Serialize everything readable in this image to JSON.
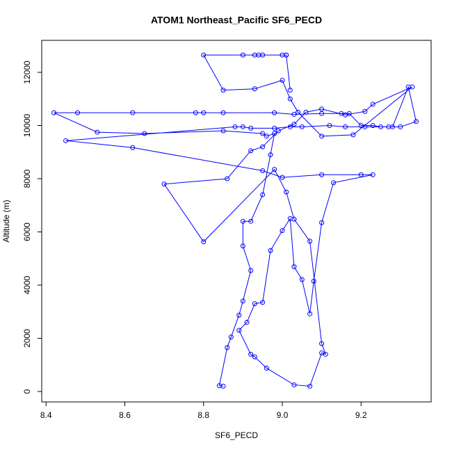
{
  "chart_data": {
    "type": "line",
    "title": "ATOM1 Northeast_Pacific SF6_PECD",
    "x_label": "SF6_PECD",
    "y_label": "Altitude (m)",
    "markers": true,
    "color": "#0000ff",
    "x": [
      8.85,
      8.84,
      8.86,
      8.87,
      8.89,
      8.9,
      8.92,
      8.9,
      8.9,
      8.92,
      8.95,
      8.97,
      8.98,
      8.96,
      8.95,
      8.85,
      8.65,
      8.53,
      8.42,
      8.48,
      8.62,
      8.78,
      8.8,
      8.85,
      8.98,
      9.03,
      9.1,
      9.15,
      9.17,
      9.2,
      9.23,
      9.25,
      9.27,
      9.3,
      9.34,
      9.32,
      9.28,
      9.21,
      9.16,
      9.12,
      9.05,
      9.02,
      8.98,
      8.92,
      8.9,
      8.88,
      8.45,
      8.62,
      8.95,
      9.0,
      9.1,
      9.2,
      9.23,
      9.13,
      9.1,
      9.08,
      9.07,
      9.05,
      9.03,
      9.02,
      9.0,
      8.97,
      8.95,
      8.93,
      8.91,
      8.89,
      8.92,
      8.93,
      8.96,
      9.03,
      9.07,
      9.1,
      9.11,
      9.1,
      9.07,
      9.03,
      9.01,
      8.98,
      8.8,
      8.7,
      8.86,
      8.92,
      8.95,
      8.99,
      9.03,
      9.06,
      9.1,
      9.16,
      9.21,
      9.23,
      9.33,
      9.18,
      9.1,
      9.04,
      9.02,
      9.0,
      8.93,
      8.85,
      8.8,
      8.9,
      8.93,
      8.94,
      8.95,
      9.0,
      9.01,
      9.01,
      9.02
    ],
    "values": [
      200,
      220,
      1650,
      2050,
      2870,
      3400,
      4550,
      5470,
      6400,
      6400,
      7400,
      8900,
      9700,
      9600,
      9700,
      9800,
      9700,
      9750,
      10480,
      10480,
      10480,
      10480,
      10480,
      10480,
      10480,
      10420,
      10450,
      10450,
      10450,
      10000,
      10000,
      9950,
      9950,
      9950,
      10150,
      11450,
      9950,
      9950,
      9950,
      10000,
      9950,
      9950,
      9900,
      9900,
      9950,
      9950,
      9430,
      9170,
      8300,
      8050,
      8150,
      8150,
      8150,
      7850,
      6350,
      4150,
      2920,
      4210,
      4690,
      6500,
      6050,
      5300,
      3350,
      3300,
      2600,
      2300,
      1400,
      1300,
      880,
      250,
      200,
      1450,
      1400,
      1800,
      5650,
      6480,
      7500,
      8350,
      5630,
      7800,
      8000,
      9050,
      9200,
      9800,
      10050,
      10500,
      10620,
      10400,
      10530,
      10800,
      11450,
      9650,
      9600,
      10500,
      11000,
      11700,
      11380,
      11330,
      12650,
      12650,
      12650,
      12650,
      12650,
      12650,
      12650,
      12650,
      11330
    ],
    "xlim": [
      8.389,
      9.378
    ],
    "ylim": [
      -392,
      13203
    ],
    "xticks": [
      8.4,
      8.6,
      8.8,
      {
        "value": 9,
        "label": "9.0"
      },
      9.2
    ],
    "yticks": [
      0,
      2000,
      4000,
      6000,
      8000,
      10000,
      12000
    ]
  }
}
